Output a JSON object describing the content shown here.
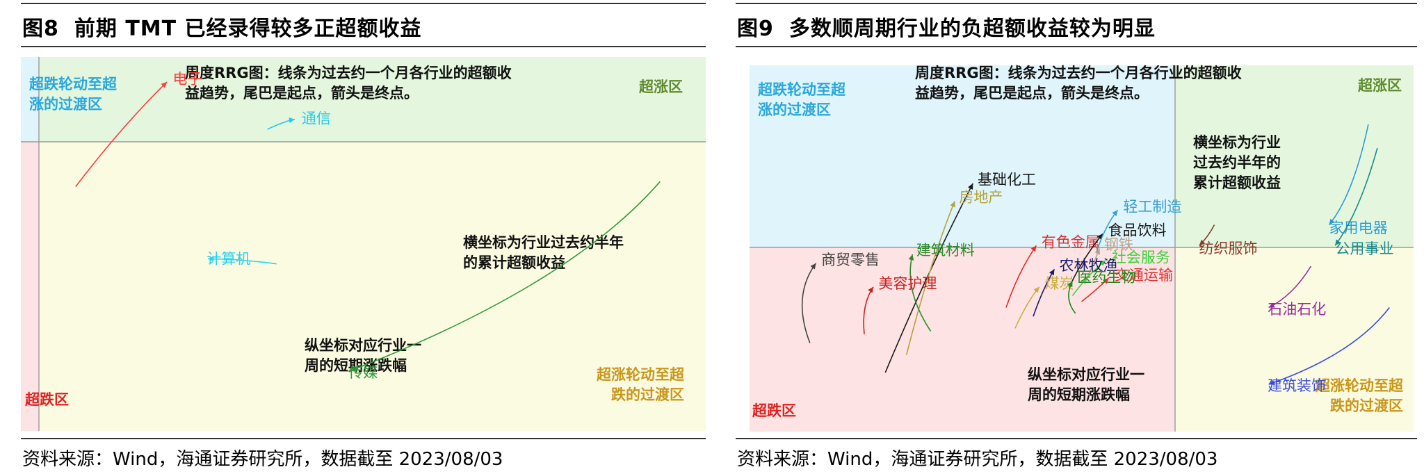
{
  "figures": [
    {
      "fig_label": "图8",
      "title": "前期 TMT 已经录得较多正超额收益",
      "source": "资料来源：Wind，海通证券研究所，数据截至 2023/08/03",
      "chart_data": {
        "type": "scatter",
        "annotations": {
          "top_note": [
            "周度RRG图：线条为过去约一个月各行业的超额收",
            "益趋势，尾巴是起点，箭头是终点。"
          ],
          "x_note": [
            "横坐标为行业过去约半年",
            "的累计超额收益"
          ],
          "y_note": [
            "纵坐标对应行业一",
            "周的短期涨跌幅"
          ]
        },
        "quadrants": {
          "top_left": [
            "超跌轮动至超",
            "涨的过渡区"
          ],
          "top_right": [
            "超涨区"
          ],
          "bottom_left": [
            "超跌区"
          ],
          "bottom_right": [
            "超涨轮动至超",
            "跌的过渡区"
          ]
        },
        "quadrant_colors": {
          "top_left": "#dff4fb",
          "top_right": "#e4f7de",
          "bottom_left": "#fde3e3",
          "bottom_right": "#fbfbe2"
        },
        "quadrant_label_colors": {
          "top_left": "#2aa7dc",
          "top_right": "#5f8a2e",
          "bottom_left": "#e02020",
          "bottom_right": "#c9961a"
        },
        "series": [
          {
            "name": "电子",
            "color": "#ff3b3b",
            "path": [
              [
                -0.9,
                -0.6
              ],
              [
                -0.4,
                0.6
              ],
              [
                0.1,
                1.5
              ]
            ]
          },
          {
            "name": "通信",
            "color": "#27c8e8",
            "path": [
              [
                1.2,
                0.55
              ],
              [
                1.4,
                0.72
              ],
              [
                1.5,
                0.75
              ]
            ]
          },
          {
            "name": "计算机",
            "color": "#2ad1f0",
            "path": [
              [
                1.3,
                -2.15
              ],
              [
                0.9,
                -2.05
              ],
              [
                0.55,
                -2.05
              ]
            ]
          },
          {
            "name": "传媒",
            "color": "#2f9a3a",
            "path": [
              [
                5.5,
                -0.5
              ],
              [
                4.5,
                -2.6
              ],
              [
                2.1,
                -4.3
              ]
            ]
          }
        ]
      }
    },
    {
      "fig_label": "图9",
      "title": "多数顺周期行业的负超额收益较为明显",
      "source": "资料来源：Wind，海通证券研究所，数据截至 2023/08/03",
      "chart_data": {
        "type": "scatter",
        "annotations": {
          "top_note": [
            "周度RRG图：线条为过去约一个月各行业的超额收",
            "益趋势，尾巴是起点，箭头是终点。"
          ],
          "x_note": [
            "横坐标为行业",
            "过去约半年的",
            "累计超额收益"
          ],
          "y_note": [
            "纵坐标对应行业一",
            "周的短期涨跌幅"
          ]
        },
        "quadrants": {
          "top_left": [
            "超跌轮动至超",
            "涨的过渡区"
          ],
          "top_right": [
            "超涨区"
          ],
          "bottom_left": [
            "超跌区"
          ],
          "bottom_right": [
            "超涨轮动至超",
            "跌的过渡区"
          ]
        },
        "quadrant_colors": {
          "top_left": "#dff4fb",
          "top_right": "#e4f7de",
          "bottom_left": "#fde3e3",
          "bottom_right": "#fbfbe2"
        },
        "quadrant_label_colors": {
          "top_left": "#2aa7dc",
          "top_right": "#5f8a2e",
          "bottom_left": "#e02020",
          "bottom_right": "#c9961a"
        },
        "series": [
          {
            "name": "基础化工",
            "color": "#1a1a1a",
            "path": [
              [
                -9.5,
                -2.2
              ],
              [
                -8.2,
                -0.6
              ],
              [
                -6.6,
                1.0
              ]
            ]
          },
          {
            "name": "房地产",
            "color": "#b5a23a",
            "path": [
              [
                -8.8,
                -1.9
              ],
              [
                -8.0,
                -0.3
              ],
              [
                -7.2,
                0.7
              ]
            ]
          },
          {
            "name": "建筑材料",
            "color": "#2c8a2c",
            "path": [
              [
                -8.0,
                -1.5
              ],
              [
                -8.9,
                -0.8
              ],
              [
                -8.6,
                -0.2
              ]
            ]
          },
          {
            "name": "商贸零售",
            "color": "#444444",
            "path": [
              [
                -12.0,
                -1.7
              ],
              [
                -12.6,
                -0.9
              ],
              [
                -11.8,
                -0.35
              ]
            ]
          },
          {
            "name": "美容护理",
            "color": "#cc2020",
            "path": [
              [
                -10.2,
                -1.55
              ],
              [
                -10.3,
                -1.05
              ],
              [
                -9.9,
                -0.75
              ]
            ]
          },
          {
            "name": "有色金属",
            "color": "#e82a2a",
            "path": [
              [
                -5.5,
                -1.1
              ],
              [
                -5.1,
                -0.5
              ],
              [
                -4.5,
                -0.05
              ]
            ]
          },
          {
            "name": "食品饮料",
            "color": "#1a1a1a",
            "path": [
              [
                -3.4,
                -0.75
              ],
              [
                -3.0,
                -0.3
              ],
              [
                -2.3,
                0.15
              ]
            ]
          },
          {
            "name": "钢铁",
            "color": "#c0a08a",
            "path": [
              [
                -2.9,
                -0.7
              ],
              [
                -2.6,
                -0.35
              ],
              [
                -2.4,
                -0.1
              ]
            ]
          },
          {
            "name": "轻工制造",
            "color": "#3aa0d0",
            "path": [
              [
                -2.5,
                -0.15
              ],
              [
                -2.2,
                0.3
              ],
              [
                -1.8,
                0.55
              ]
            ]
          },
          {
            "name": "社会服务",
            "color": "#3bd23b",
            "path": [
              [
                -3.3,
                -0.9
              ],
              [
                -2.8,
                -0.55
              ],
              [
                -2.2,
                -0.3
              ]
            ]
          },
          {
            "name": "农林牧渔",
            "color": "#1a1a6a",
            "path": [
              [
                -4.6,
                -1.25
              ],
              [
                -4.3,
                -0.8
              ],
              [
                -3.9,
                -0.45
              ]
            ]
          },
          {
            "name": "煤炭",
            "color": "#c8b040",
            "path": [
              [
                -5.2,
                -1.45
              ],
              [
                -4.8,
                -1.0
              ],
              [
                -4.4,
                -0.75
              ]
            ]
          },
          {
            "name": "交通运输",
            "color": "#e03030",
            "path": [
              [
                -3.0,
                -1.0
              ],
              [
                -2.5,
                -0.8
              ],
              [
                -2.1,
                -0.6
              ]
            ]
          },
          {
            "name": "医药生物",
            "color": "#1f8a1f",
            "path": [
              [
                -3.2,
                -1.2
              ],
              [
                -3.6,
                -0.95
              ],
              [
                -3.3,
                -0.65
              ]
            ]
          },
          {
            "name": "家用电器",
            "color": "#2a9ad8",
            "path": [
              [
                6.5,
                2.0
              ],
              [
                6.0,
                0.8
              ],
              [
                5.2,
                0.3
              ]
            ]
          },
          {
            "name": "公用事业",
            "color": "#1a8a8a",
            "path": [
              [
                6.8,
                1.6
              ],
              [
                6.2,
                0.5
              ],
              [
                5.4,
                -0.05
              ]
            ]
          },
          {
            "name": "纺织服饰",
            "color": "#8a3a2a",
            "path": [
              [
                1.4,
                0.3
              ],
              [
                1.2,
                0.1
              ],
              [
                0.9,
                -0.05
              ]
            ]
          },
          {
            "name": "石油石化",
            "color": "#9a2aa0",
            "path": [
              [
                4.6,
                -0.4
              ],
              [
                4.0,
                -0.9
              ],
              [
                3.2,
                -1.1
              ]
            ]
          },
          {
            "name": "建筑装饰",
            "color": "#3a4ae0",
            "path": [
              [
                7.2,
                -1.1
              ],
              [
                6.0,
                -1.9
              ],
              [
                3.2,
                -2.4
              ]
            ]
          }
        ]
      }
    }
  ]
}
